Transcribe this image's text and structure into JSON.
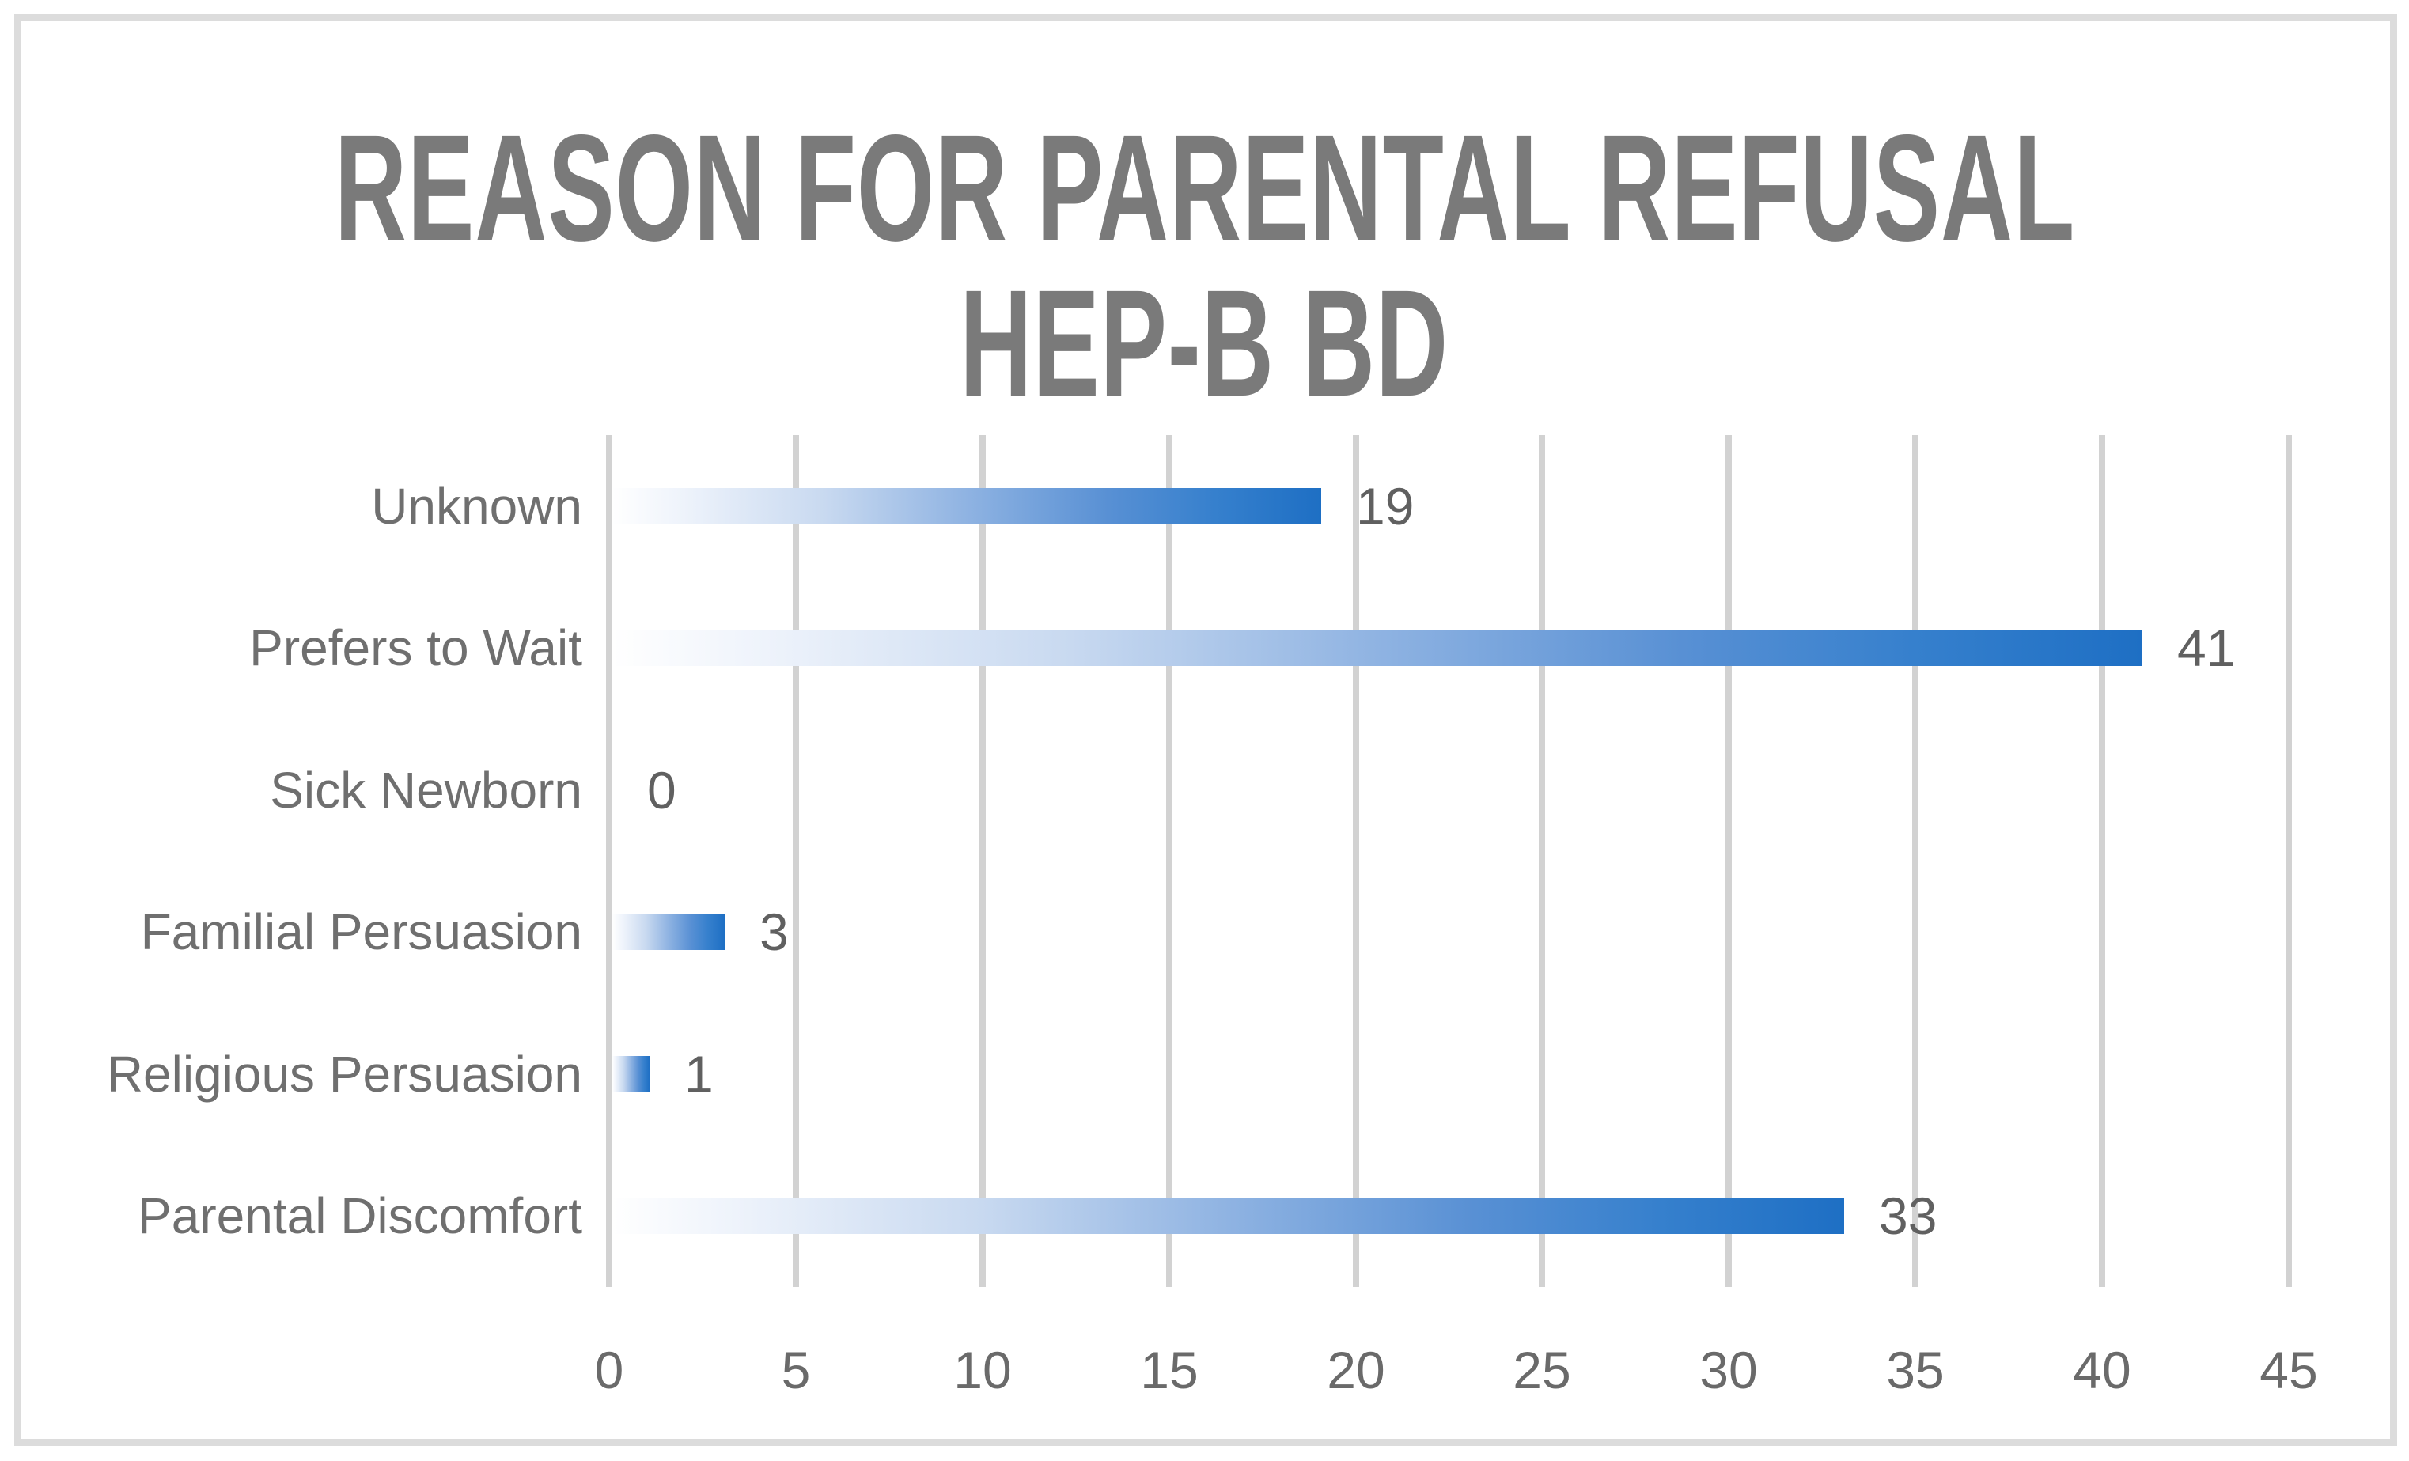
{
  "title": {
    "line1": "REASON FOR PARENTAL REFUSAL",
    "line2": "HEP-B BD"
  },
  "chart_data": {
    "type": "bar",
    "orientation": "horizontal",
    "title": "REASON FOR PARENTAL REFUSAL HEP-B BD",
    "categories": [
      "Unknown",
      "Prefers to Wait",
      "Sick Newborn",
      "Familial Persuasion",
      "Religious Persuasion",
      "Parental Discomfort"
    ],
    "values": [
      19,
      41,
      0,
      3,
      1,
      33
    ],
    "data_labels": [
      "19",
      "41",
      "0",
      "3",
      "1",
      "33"
    ],
    "xlabel": "",
    "ylabel": "",
    "xlim": [
      0,
      45
    ],
    "x_ticks": [
      0,
      5,
      10,
      15,
      20,
      25,
      30,
      35,
      40,
      45
    ],
    "grid": "vertical-only",
    "legend_position": "none"
  },
  "colors": {
    "title_text": "#7a7a7a",
    "category_text": "#6f6f6f",
    "value_text": "#606060",
    "tick_text": "#6a6a6a",
    "gridline": "#d2d2d2",
    "frame_border": "#dcdcdc",
    "bar_gradient_start": "#ffffff",
    "bar_gradient_mid": "#8fb3e2",
    "bar_gradient_end": "#1e6fc4",
    "background": "#ffffff"
  }
}
